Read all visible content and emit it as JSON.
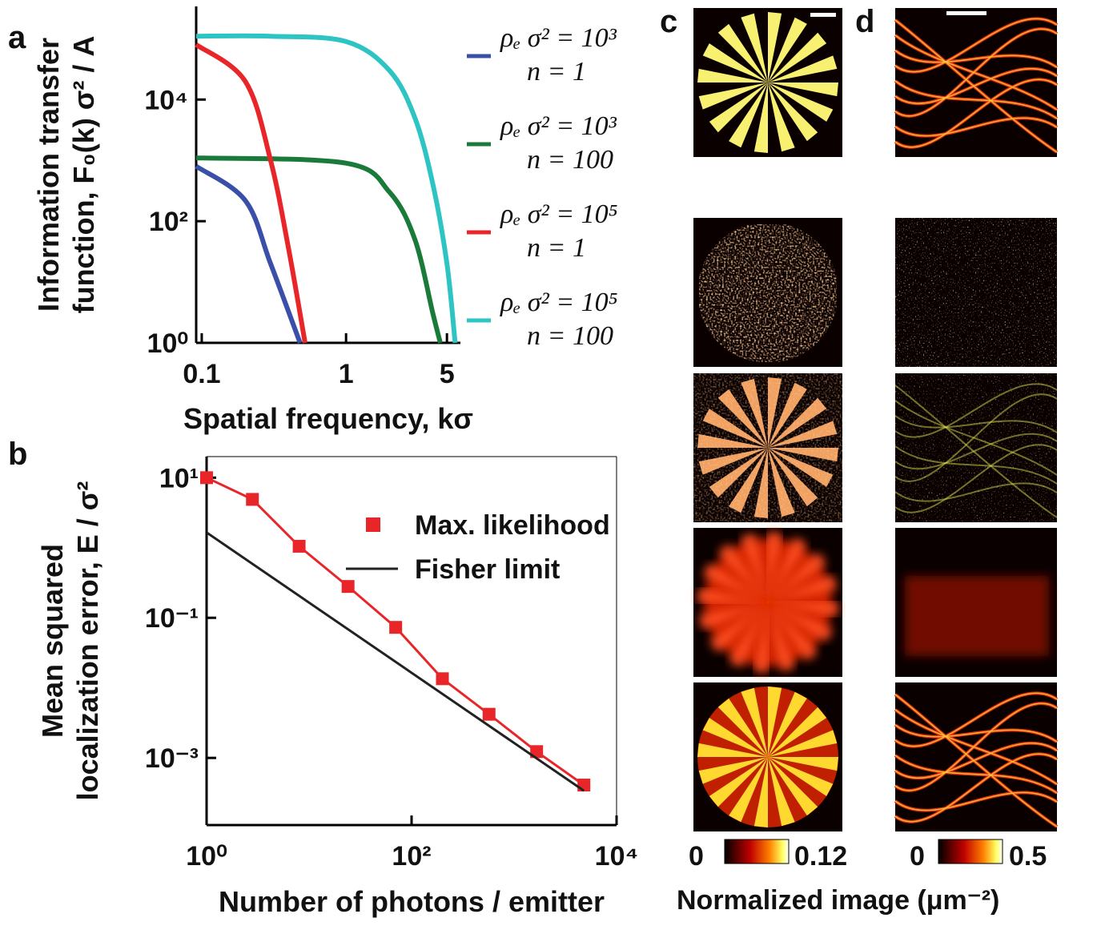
{
  "chart_data": [
    {
      "type": "line",
      "panel_label": "a",
      "ylabel": "Information transfer function, F₀(k) σ² / A",
      "xlabel": "Spatial frequency, kσ",
      "log_x": true,
      "log_y": true,
      "xlim": [
        0.0915,
        6.2
      ],
      "ylim": [
        1,
        340000
      ],
      "xticks": [
        0.1,
        1,
        5
      ],
      "yticks": [
        {
          "value": 1,
          "label": "10⁰"
        },
        {
          "value": 100,
          "label": "10²"
        },
        {
          "value": 10000,
          "label": "10⁴"
        }
      ],
      "series": [
        {
          "name": "ρₑ σ² = 10³\nn = 1",
          "color": "#3a4fa8",
          "x": [
            0.0915,
            0.2,
            0.3,
            0.48
          ],
          "values": [
            800,
            220,
            20,
            1
          ]
        },
        {
          "name": "ρₑ σ² = 10³\nn = 100",
          "color": "#1a7a3a",
          "x": [
            0.0915,
            1,
            2,
            3,
            4,
            4.5
          ],
          "values": [
            1100,
            900,
            300,
            50,
            3,
            1
          ]
        },
        {
          "name": "ρₑ σ² = 10⁵\nn = 1",
          "color": "#e8262a",
          "x": [
            0.0915,
            0.2,
            0.3,
            0.4,
            0.52
          ],
          "values": [
            80000,
            20000,
            1000,
            35,
            1
          ]
        },
        {
          "name": "ρₑ σ² = 10⁵\nn = 100",
          "color": "#2ec4c4",
          "x": [
            0.0915,
            0.3,
            1,
            2,
            3,
            4,
            5,
            5.7
          ],
          "values": [
            110000,
            110000,
            90000,
            30000,
            5000,
            400,
            20,
            1
          ]
        }
      ]
    },
    {
      "type": "line",
      "panel_label": "b",
      "ylabel": "Mean squared localization error, E / σ²",
      "xlabel": "Number of photons / emitter",
      "log_x": true,
      "log_y": true,
      "xlim": [
        1,
        10000
      ],
      "ylim": [
        0.00011,
        20
      ],
      "xticks": [
        {
          "value": 1,
          "label": "10⁰"
        },
        {
          "value": 100,
          "label": "10²"
        },
        {
          "value": 10000,
          "label": "10⁴"
        }
      ],
      "yticks": [
        {
          "value": 10,
          "label": "10¹"
        },
        {
          "value": 0.1,
          "label": "10⁻¹"
        },
        {
          "value": 0.001,
          "label": "10⁻³"
        }
      ],
      "series": [
        {
          "name": "Max. likelihood",
          "color": "#e8262a",
          "marker": "square",
          "x": [
            1,
            2.8,
            8,
            24,
            70,
            200,
            570,
            1660,
            4800
          ],
          "values": [
            10,
            4.9,
            1.05,
            0.28,
            0.073,
            0.0135,
            0.0042,
            0.00123,
            0.00041
          ]
        },
        {
          "name": "Fisher limit",
          "color": "#222222",
          "marker": "none",
          "x": [
            1,
            4800
          ],
          "values": [
            1.65,
            0.00034
          ]
        }
      ]
    }
  ],
  "images": {
    "panel_c_label": "c",
    "panel_d_label": "d",
    "colorbar_c": {
      "min_label": "0",
      "max_label": "0.12"
    },
    "colorbar_d": {
      "min_label": "0",
      "max_label": "0.5"
    },
    "caption": "Normalized image (μm⁻²)"
  }
}
